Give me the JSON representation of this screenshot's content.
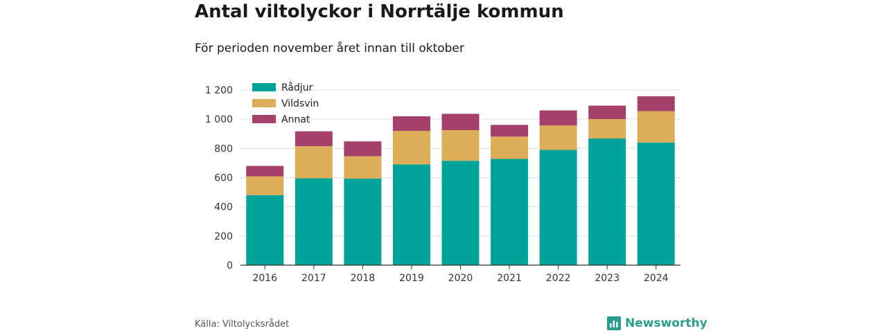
{
  "header": {
    "title": "Antal viltolyckor i Norrtälje kommun",
    "subtitle": "För perioden november året innan till oktober"
  },
  "footer": {
    "source": "Källa: Viltolycksrådet",
    "brand": "Newsworthy",
    "brand_icon": "bar-chart-logo-icon"
  },
  "chart_data": {
    "type": "bar",
    "stacked": true,
    "categories": [
      "2016",
      "2017",
      "2018",
      "2019",
      "2020",
      "2021",
      "2022",
      "2023",
      "2024"
    ],
    "series": [
      {
        "name": "Rådjur",
        "color": "#00a399",
        "values": [
          480,
          595,
          593,
          690,
          715,
          728,
          790,
          868,
          840
        ]
      },
      {
        "name": "Vildsvin",
        "color": "#dcae5a",
        "values": [
          128,
          220,
          153,
          230,
          210,
          153,
          167,
          133,
          215
        ]
      },
      {
        "name": "Annat",
        "color": "#a5406a",
        "values": [
          72,
          102,
          102,
          100,
          112,
          80,
          103,
          92,
          102
        ]
      }
    ],
    "yticks": [
      0,
      200,
      400,
      600,
      800,
      1000,
      1200
    ],
    "ytick_labels": [
      "0",
      "200",
      "400",
      "600",
      "800",
      "1 000",
      "1 200"
    ],
    "ylim": [
      0,
      1200
    ],
    "grid": true,
    "legend_position": "top-left"
  }
}
